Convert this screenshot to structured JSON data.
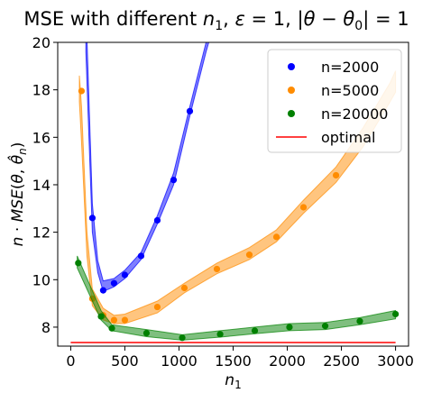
{
  "chart_data": {
    "type": "line",
    "title": "MSE with different n₁, ε = 1, |θ − θ₀| = 1",
    "xlabel": "n₁",
    "ylabel": "n · MSE(θ, θ̂ₙ)",
    "xlim": [
      -120,
      3120
    ],
    "ylim": [
      7.2,
      20
    ],
    "xticks": [
      0,
      500,
      1000,
      1500,
      2000,
      2500,
      3000
    ],
    "yticks": [
      8,
      10,
      12,
      14,
      16,
      18,
      20
    ],
    "grid": false,
    "legend_position": "upper right",
    "series": [
      {
        "name": "n=2000",
        "color": "#0000ff",
        "points_x": [
          200,
          300,
          400,
          500,
          650,
          800,
          950,
          1100
        ],
        "points_y": [
          12.6,
          9.55,
          9.85,
          10.2,
          11.0,
          12.5,
          14.2,
          17.1
        ],
        "band_x": [
          140,
          200,
          250,
          300,
          400,
          500,
          650,
          800,
          950,
          1100,
          1250,
          1300
        ],
        "band_lower": [
          19.6,
          12.0,
          10.3,
          9.5,
          9.7,
          10.05,
          10.85,
          12.35,
          14.0,
          16.9,
          19.6,
          20.4
        ],
        "band_upper": [
          21.6,
          13.2,
          10.8,
          9.95,
          10.05,
          10.4,
          11.15,
          12.7,
          14.5,
          17.3,
          20.0,
          20.8
        ]
      },
      {
        "name": "n=5000",
        "color": "#ff8c00",
        "points_x": [
          100,
          200,
          300,
          400,
          500,
          800,
          1050,
          1350,
          1650,
          1900,
          2150,
          2450
        ],
        "points_y": [
          17.95,
          9.2,
          8.5,
          8.3,
          8.3,
          8.85,
          9.65,
          10.45,
          11.05,
          11.8,
          13.05,
          14.4
        ],
        "band_x": [
          80,
          100,
          150,
          200,
          300,
          400,
          500,
          800,
          1050,
          1350,
          1650,
          1900,
          2150,
          2450,
          2700,
          2950,
          3000
        ],
        "band_lower": [
          17.5,
          15.8,
          11.0,
          8.9,
          8.3,
          8.15,
          8.15,
          8.6,
          9.45,
          10.25,
          10.85,
          11.6,
          12.8,
          14.1,
          15.6,
          17.5,
          17.9
        ],
        "band_upper": [
          18.6,
          17.3,
          12.0,
          9.6,
          8.8,
          8.5,
          8.55,
          9.1,
          9.85,
          10.7,
          11.35,
          12.1,
          13.35,
          14.75,
          16.4,
          18.3,
          18.8
        ]
      },
      {
        "name": "n=20000",
        "color": "#008000",
        "points_x": [
          70,
          280,
          380,
          700,
          1030,
          1380,
          1700,
          2020,
          2350,
          2670,
          3000
        ],
        "points_y": [
          10.7,
          8.45,
          7.95,
          7.75,
          7.55,
          7.7,
          7.85,
          8.0,
          8.05,
          8.25,
          8.55
        ],
        "band_x": [
          60,
          280,
          380,
          700,
          1030,
          1380,
          1700,
          2020,
          2350,
          2670,
          3000
        ],
        "band_lower": [
          10.5,
          8.3,
          7.85,
          7.6,
          7.45,
          7.58,
          7.72,
          7.85,
          7.9,
          8.1,
          8.35
        ],
        "band_upper": [
          11.0,
          8.7,
          8.1,
          7.9,
          7.68,
          7.85,
          8.0,
          8.15,
          8.2,
          8.4,
          8.7
        ]
      },
      {
        "name": "optimal",
        "color": "#ff0000",
        "line_x": [
          0,
          3000
        ],
        "line_y": [
          7.35,
          7.35
        ]
      }
    ]
  }
}
